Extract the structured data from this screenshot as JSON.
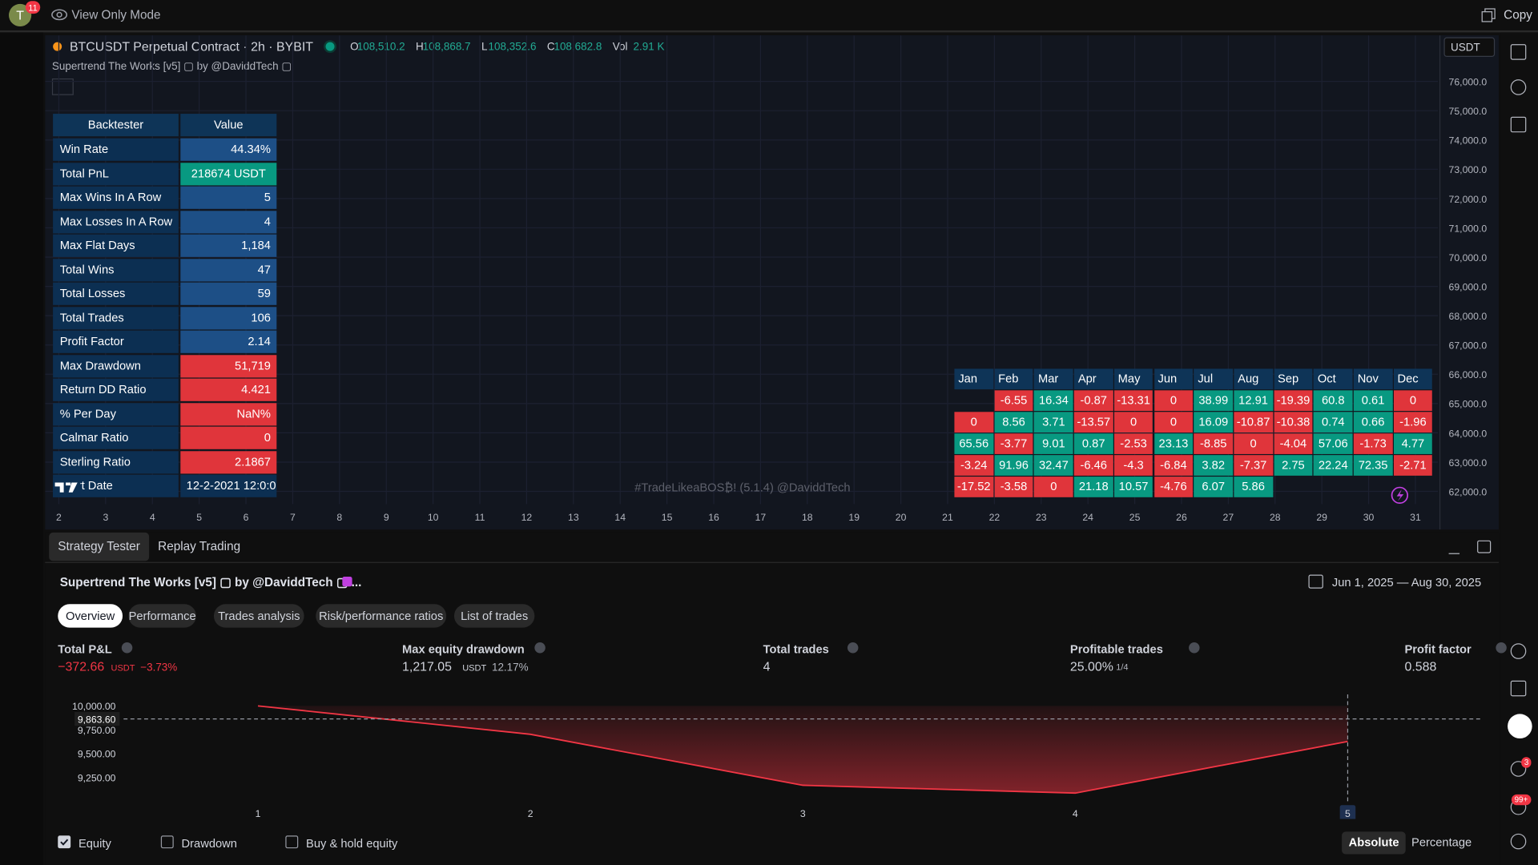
{
  "topbar": {
    "avatar": "T",
    "badge": "11",
    "mode": "View Only Mode",
    "copy": "Copy"
  },
  "chart": {
    "symbol": "BTCUSDT Perpetual Contract · 2h · BYBIT",
    "ohlc": [
      {
        "k": "O",
        "v": "108,510.2"
      },
      {
        "k": "H",
        "v": "108,868.7"
      },
      {
        "k": "L",
        "v": "108,352.6"
      },
      {
        "k": "C",
        "v": "108,682.8"
      },
      {
        "k": "Vol",
        "v": "2.91 K"
      }
    ],
    "indicator": "Supertrend The Works [v5] ▢ by @DaviddTech ▢",
    "currency": "USDT",
    "price_labels": [
      "76,000.0",
      "75,000.0",
      "74,000.0",
      "73,000.0",
      "72,000.0",
      "71,000.0",
      "70,000.0",
      "69,000.0",
      "68,000.0",
      "67,000.0",
      "66,000.0",
      "65,000.0",
      "64,000.0",
      "63,000.0",
      "62,000.0"
    ],
    "time_labels": [
      2,
      3,
      4,
      5,
      6,
      7,
      8,
      9,
      10,
      11,
      12,
      13,
      14,
      15,
      16,
      17,
      18,
      19,
      20,
      21,
      22,
      23,
      24,
      25,
      26,
      27,
      28,
      29,
      30,
      31
    ],
    "watermark": "#TradeLikeaBOS₿! (5.1.4) @DaviddTech"
  },
  "backtester": {
    "header": [
      "Backtester",
      "Value"
    ],
    "rows": [
      {
        "label": "Win Rate",
        "value": "44.34%",
        "tone": "blue"
      },
      {
        "label": "Total PnL",
        "value": "218674 USDT",
        "tone": "green"
      },
      {
        "label": "Max Wins In A Row",
        "value": "5",
        "tone": "blue"
      },
      {
        "label": "Max Losses In A Row",
        "value": "4",
        "tone": "blue"
      },
      {
        "label": "Max Flat Days",
        "value": "1,184",
        "tone": "blue"
      },
      {
        "label": "Total Wins",
        "value": "47",
        "tone": "blue"
      },
      {
        "label": "Total Losses",
        "value": "59",
        "tone": "blue"
      },
      {
        "label": "Total Trades",
        "value": "106",
        "tone": "blue"
      },
      {
        "label": "Profit Factor",
        "value": "2.14",
        "tone": "blue"
      },
      {
        "label": "Max Drawdown",
        "value": "51,719",
        "tone": "red"
      },
      {
        "label": "Return DD Ratio",
        "value": "4.421",
        "tone": "red"
      },
      {
        "label": "% Per Day",
        "value": "NaN%",
        "tone": "red"
      },
      {
        "label": "Calmar Ratio",
        "value": "0",
        "tone": "red"
      },
      {
        "label": "Sterling Ratio",
        "value": "2.1867",
        "tone": "red"
      },
      {
        "label": "Start Date",
        "value": "12-2-2021 12:0:0",
        "tone": "dark"
      }
    ]
  },
  "monthly": {
    "months": [
      "Jan",
      "Feb",
      "Mar",
      "Apr",
      "May",
      "Jun",
      "Jul",
      "Aug",
      "Sep",
      "Oct",
      "Nov",
      "Dec"
    ],
    "rows": [
      [
        null,
        -6.55,
        16.34,
        -0.87,
        -13.31,
        0,
        38.99,
        12.91,
        -19.39,
        60.8,
        0.61,
        0
      ],
      [
        0,
        8.56,
        3.71,
        -13.57,
        0,
        0,
        16.09,
        -10.87,
        -10.38,
        0.74,
        0.66,
        -1.96
      ],
      [
        65.56,
        -3.77,
        9.01,
        0.87,
        -2.53,
        23.13,
        -8.85,
        0,
        -4.04,
        57.06,
        -1.73,
        4.77
      ],
      [
        -3.24,
        91.96,
        32.47,
        -6.46,
        -4.3,
        -6.84,
        3.82,
        -7.37,
        2.75,
        22.24,
        72.35,
        -2.71
      ],
      [
        -17.52,
        -3.58,
        0,
        21.18,
        10.57,
        -4.76,
        6.07,
        5.86,
        null,
        null,
        null,
        null
      ]
    ]
  },
  "panel": {
    "tabs": [
      "Strategy Tester",
      "Replay Trading"
    ],
    "strategy": "Supertrend The Works [v5] ▢ by @DaviddTech ▢ ...",
    "date_range": "Jun 1, 2025 — Aug 30, 2025",
    "subtabs": [
      "Overview",
      "Performance",
      "Trades analysis",
      "Risk/performance ratios",
      "List of trades"
    ],
    "metrics": [
      {
        "label": "Total P&L",
        "value": "−372.66",
        "unit": "USDT",
        "extra": "−3.73%",
        "tone": "red"
      },
      {
        "label": "Max equity drawdown",
        "value": "1,217.05",
        "unit": "USDT",
        "extra": "12.17%",
        "tone": "plain"
      },
      {
        "label": "Total trades",
        "value": "4",
        "tone": "plain"
      },
      {
        "label": "Profitable trades",
        "value": "25.00%",
        "extra": "1/4",
        "tone": "plain"
      },
      {
        "label": "Profit factor",
        "value": "0.588",
        "tone": "plain"
      }
    ],
    "legend": [
      {
        "label": "Equity",
        "checked": true
      },
      {
        "label": "Drawdown",
        "checked": false
      },
      {
        "label": "Buy & hold equity",
        "checked": false
      }
    ],
    "modes": [
      "Absolute",
      "Percentage"
    ]
  },
  "equity_chart": {
    "type": "line",
    "categories": [
      1,
      2,
      3,
      4,
      5
    ],
    "values": [
      10000,
      9702,
      9167,
      9085,
      9627
    ],
    "color": "#f23645",
    "ylim": [
      9020,
      10080
    ],
    "yticks": [
      {
        "value": 10000,
        "label": "10,000.00"
      },
      {
        "value": 9750,
        "label": "9,750.00"
      },
      {
        "value": 9500,
        "label": "9,500.00"
      },
      {
        "value": 9250,
        "label": "9,250.00"
      }
    ],
    "marker": {
      "value": 9863.6,
      "label": "9,863.60"
    }
  },
  "sidebar": {
    "badges": [
      "3",
      "99+"
    ]
  }
}
